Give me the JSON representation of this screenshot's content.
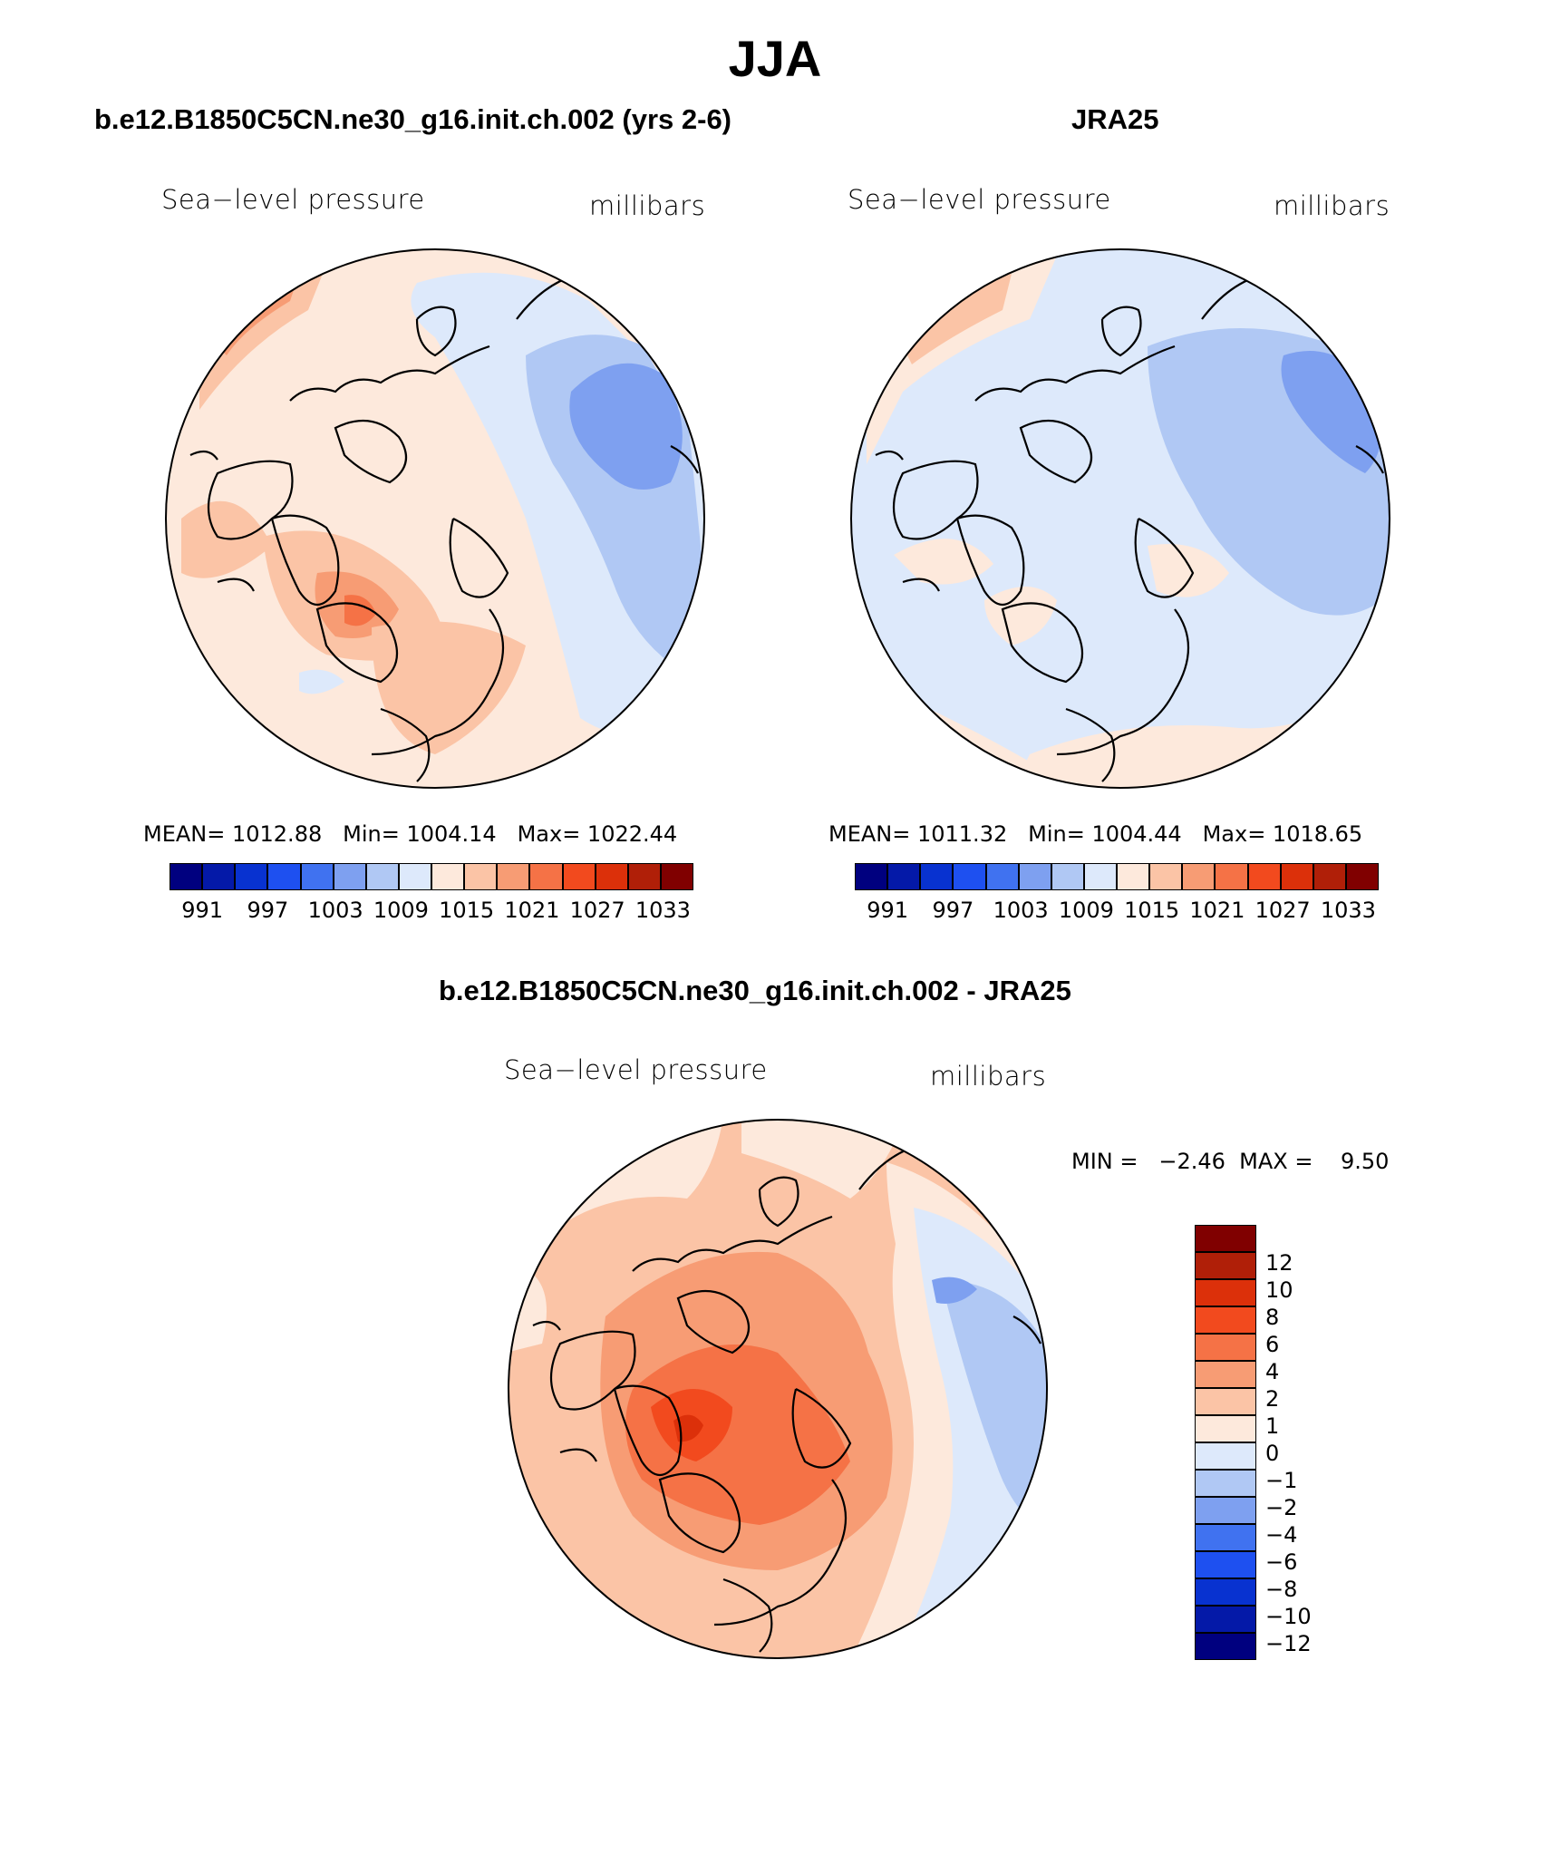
{
  "title": "JJA",
  "panels": [
    {
      "title": "b.e12.B1850C5CN.ne30_g16.init.ch.002 (yrs 2-6)",
      "left_label": "Sea−level pressure",
      "right_label": "millibars",
      "stats": "MEAN= 1012.88   Min= 1004.14   Max= 1022.44"
    },
    {
      "title": "JRA25",
      "left_label": "Sea−level pressure",
      "right_label": "millibars",
      "stats": "MEAN= 1011.32   Min= 1004.44   Max= 1018.65"
    },
    {
      "title": "b.e12.B1850C5CN.ne30_g16.init.ch.002 - JRA25",
      "left_label": "Sea−level pressure",
      "right_label": "millibars",
      "stats": "MIN =   −2.46  MAX =    9.50"
    }
  ],
  "abs_colorbar": {
    "colors": [
      "#00007f",
      "#0419a8",
      "#0832d0",
      "#1e50f0",
      "#4072f0",
      "#7ea0f0",
      "#b0c8f4",
      "#dde9fb",
      "#fde9dc",
      "#fbc4a6",
      "#f79c74",
      "#f57246",
      "#f24a1e",
      "#dc300a",
      "#b01f08",
      "#800000"
    ],
    "tick_labels": [
      "991",
      "997",
      "1003",
      "1009",
      "1015",
      "1021",
      "1027",
      "1033"
    ]
  },
  "diff_colorbar": {
    "colors_top_to_bottom": [
      "#800000",
      "#b01f08",
      "#dc300a",
      "#f24a1e",
      "#f57246",
      "#f79c74",
      "#fbc4a6",
      "#fde9dc",
      "#dde9fb",
      "#b0c8f4",
      "#7ea0f0",
      "#4072f0",
      "#1e50f0",
      "#0832d0",
      "#0419a8",
      "#00007f"
    ],
    "tick_labels": [
      "12",
      "10",
      "8",
      "6",
      "4",
      "2",
      "1",
      "0",
      "−1",
      "−2",
      "−4",
      "−6",
      "−8",
      "−10",
      "−12"
    ]
  }
}
